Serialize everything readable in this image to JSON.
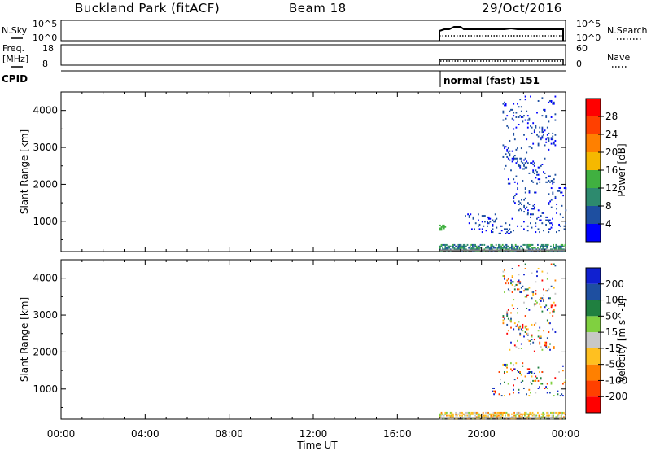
{
  "header": {
    "station": "Buckland Park (fitACF)",
    "beam": "Beam 18",
    "date": "29/Oct/2016"
  },
  "status_panels": {
    "nsky_label": "N.Sky",
    "nsky_ticks": [
      "10^5",
      "10^0"
    ],
    "nsearch_label": "N.Search",
    "nsearch_ticks": [
      "10^5",
      "10^0"
    ],
    "freq_label": "Freq.",
    "freq_unit": "[MHz]",
    "freq_ticks": [
      "18",
      "8"
    ],
    "nave_label": "Nave",
    "nave_ticks": [
      "60",
      "0"
    ],
    "cpid_label": "CPID",
    "cpid_text": "normal (fast) 151"
  },
  "colors": {
    "power_scale": [
      "#0000ff",
      "#1e4fa0",
      "#2d8a6e",
      "#40b040",
      "#f5b800",
      "#ff8000",
      "#ff4000",
      "#ff0000"
    ],
    "velocity_scale": [
      "#ff0000",
      "#ff4000",
      "#ff8000",
      "#ffc020",
      "#c8c8c8",
      "#80d040",
      "#208040",
      "#1e4fa0",
      "#1020d0"
    ],
    "ground_scatter": "#808080"
  },
  "chart_data": [
    {
      "type": "heatmap",
      "panel": "power",
      "ylabel": "Slant Range [km]",
      "yticks": [
        "1000",
        "2000",
        "3000",
        "4000"
      ],
      "ylim": [
        180,
        4500
      ],
      "xlim_hours": [
        0,
        24
      ],
      "colorbar_label": "Power [dB]",
      "colorbar_ticks": [
        "4",
        "8",
        "12",
        "16",
        "20",
        "24",
        "28"
      ],
      "colorbar_range": [
        0,
        32
      ],
      "data_regions": [
        {
          "hours": [
            18.0,
            24.0
          ],
          "range_km": [
            180,
            350
          ],
          "level": "8-12"
        },
        {
          "hours": [
            18.0,
            18.3
          ],
          "range_km": [
            750,
            900
          ],
          "level": "12-16"
        },
        {
          "hours": [
            19.2,
            24.0
          ],
          "range_km": [
            650,
            1200
          ],
          "level": "0-8"
        },
        {
          "hours": [
            21.5,
            24.0
          ],
          "range_km": [
            1200,
            1900
          ],
          "level": "0-8"
        },
        {
          "hours": [
            21.0,
            23.5
          ],
          "range_km": [
            2000,
            4400
          ],
          "level": "0-8"
        }
      ]
    },
    {
      "type": "heatmap",
      "panel": "velocity",
      "ylabel": "Slant Range [km]",
      "yticks": [
        "1000",
        "2000",
        "3000",
        "4000"
      ],
      "ylim": [
        180,
        4500
      ],
      "xlim_hours": [
        0,
        24
      ],
      "xlabel": "Time UT",
      "xticks": [
        "00:00",
        "04:00",
        "08:00",
        "12:00",
        "16:00",
        "20:00",
        "00:00"
      ],
      "colorbar_label": "Velocity [m s^-1]",
      "colorbar_ticks": [
        "200",
        "100",
        "50",
        "15",
        "-15",
        "-50",
        "-100",
        "-200"
      ],
      "data_regions": [
        {
          "hours": [
            18.0,
            24.0
          ],
          "range_km": [
            180,
            350
          ],
          "level": "-15 to 15"
        },
        {
          "hours": [
            20.5,
            24.0
          ],
          "range_km": [
            800,
            1700
          ],
          "level": "mixed"
        },
        {
          "hours": [
            21.0,
            23.5
          ],
          "range_km": [
            2000,
            4400
          ],
          "level": "mixed"
        }
      ]
    }
  ]
}
